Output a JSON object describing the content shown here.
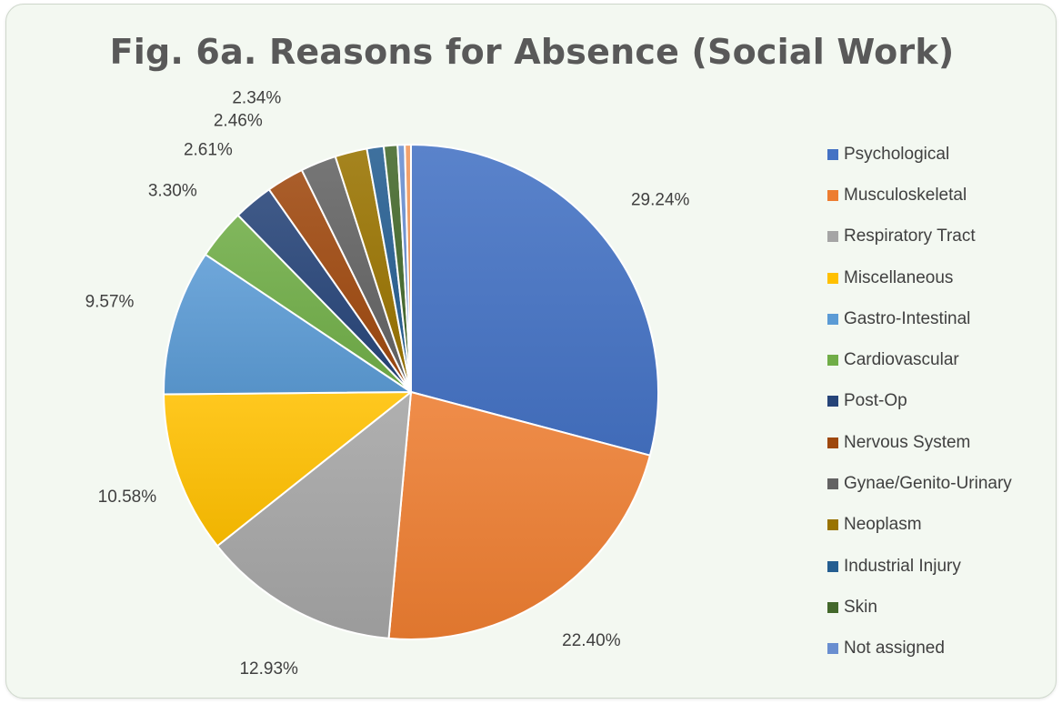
{
  "chart_data": {
    "type": "pie",
    "title": "Fig. 6a. Reasons for Absence (Social Work)",
    "legend_position": "right",
    "categories": [
      "Psychological",
      "Musculoskeletal",
      "Respiratory Tract",
      "Miscellaneous",
      "Gastro-Intestinal",
      "Cardiovascular",
      "Post-Op",
      "Nervous System",
      "Gynae/Genito-Urinary",
      "Neoplasm",
      "Industrial Injury",
      "Skin",
      "Not assigned"
    ],
    "values": [
      29.24,
      22.4,
      12.93,
      10.58,
      9.57,
      3.3,
      2.61,
      2.46,
      2.34,
      2.1,
      1.1,
      0.9,
      0.47
    ],
    "data_labels": [
      "29.24%",
      "22.40%",
      "12.93%",
      "10.58%",
      "9.57%",
      "3.30%",
      "2.61%",
      "2.46%",
      "2.34%",
      "",
      "",
      "",
      ""
    ],
    "colors": [
      "#4472c4",
      "#ed7d31",
      "#a5a5a5",
      "#ffc000",
      "#5b9bd5",
      "#70ad47",
      "#264478",
      "#9e480e",
      "#636363",
      "#997300",
      "#255e91",
      "#43682b",
      "#698ed0"
    ],
    "extra_slice_colors": [
      "#f1975a"
    ],
    "extra_slice_values": [
      0.4
    ]
  }
}
